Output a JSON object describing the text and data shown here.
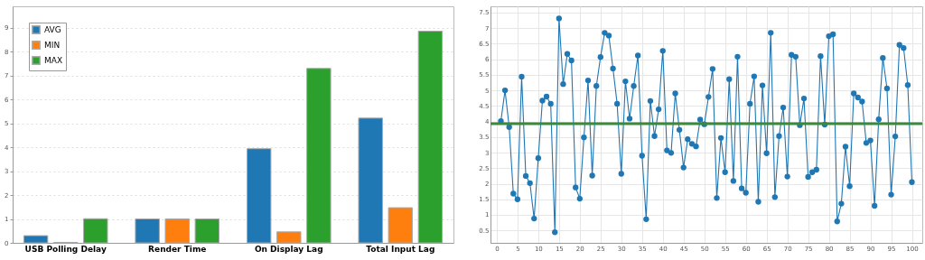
{
  "chart_data": [
    {
      "type": "bar",
      "categories": [
        "USB Polling Delay",
        "Render Time",
        "On Display Lag",
        "Total Input Lag"
      ],
      "series": [
        {
          "name": "AVG",
          "color": "#1f77b4",
          "values": [
            0.3,
            1.0,
            3.94,
            5.22
          ]
        },
        {
          "name": "MIN",
          "color": "#ff7f0e",
          "values": [
            0.02,
            1.0,
            0.46,
            1.47
          ]
        },
        {
          "name": "MAX",
          "color": "#2ca02c",
          "values": [
            1.01,
            1.0,
            7.3,
            8.86
          ]
        }
      ],
      "ylim": [
        0,
        9.9
      ],
      "yticks": [
        0,
        1,
        2,
        3,
        4,
        5,
        6,
        7,
        8,
        9
      ],
      "grid": "y",
      "legend": "top left"
    },
    {
      "type": "line",
      "x": [
        1,
        2,
        3,
        4,
        5,
        6,
        7,
        8,
        9,
        10,
        11,
        12,
        13,
        14,
        15,
        16,
        17,
        18,
        19,
        20,
        21,
        22,
        23,
        24,
        25,
        26,
        27,
        28,
        29,
        30,
        31,
        32,
        33,
        34,
        35,
        36,
        37,
        38,
        39,
        40,
        41,
        42,
        43,
        44,
        45,
        46,
        47,
        48,
        49,
        50,
        51,
        52,
        53,
        54,
        55,
        56,
        57,
        58,
        59,
        60,
        61,
        62,
        63,
        64,
        65,
        66,
        67,
        68,
        69,
        70,
        71,
        72,
        73,
        74,
        75,
        76,
        77,
        78,
        79,
        80,
        81,
        82,
        83,
        84,
        85,
        86,
        87,
        88,
        89,
        90,
        91,
        92,
        93,
        94,
        95,
        96,
        97,
        98,
        99,
        100
      ],
      "series": [
        {
          "color": "#1f77b4",
          "values": [
            4.01,
            5.0,
            3.82,
            1.68,
            1.5,
            5.44,
            2.25,
            2.02,
            0.88,
            2.82,
            4.67,
            4.8,
            4.57,
            0.44,
            7.31,
            5.2,
            6.17,
            5.96,
            1.88,
            1.52,
            3.49,
            5.32,
            2.26,
            5.14,
            6.07,
            6.85,
            6.76,
            5.7,
            4.57,
            2.32,
            5.29,
            4.09,
            5.14,
            6.12,
            2.9,
            0.86,
            4.66,
            3.53,
            4.39,
            6.27,
            3.07,
            2.99,
            4.9,
            3.73,
            2.52,
            3.43,
            3.28,
            3.2,
            4.06,
            3.91,
            4.79,
            5.69,
            1.54,
            3.47,
            2.37,
            5.36,
            2.09,
            6.08,
            1.85,
            1.71,
            4.57,
            5.45,
            1.42,
            5.16,
            2.98,
            6.85,
            1.57,
            3.53,
            4.45,
            2.23,
            6.14,
            6.08,
            3.88,
            4.74,
            2.22,
            2.37,
            2.45,
            6.1,
            3.9,
            6.74,
            6.8,
            0.79,
            1.36,
            3.19,
            1.92,
            4.9,
            4.77,
            4.64,
            3.31,
            3.39,
            1.29,
            4.07,
            6.04,
            5.06,
            1.65,
            3.52,
            6.46,
            6.36,
            5.17,
            2.05
          ]
        }
      ],
      "ref_lines": [
        {
          "axis": "y",
          "value": 3.93,
          "color": "#3a8a3a"
        }
      ],
      "xlim": [
        -1.5,
        102.5
      ],
      "xticks": [
        0,
        5,
        10,
        15,
        20,
        25,
        30,
        35,
        40,
        45,
        50,
        55,
        60,
        65,
        70,
        75,
        80,
        85,
        90,
        95,
        100
      ],
      "ylim": [
        0.1,
        7.7
      ],
      "yticks": [
        0.5,
        1,
        1.5,
        2,
        2.5,
        3,
        3.5,
        4,
        4.5,
        5,
        5.5,
        6,
        6.5,
        7,
        7.5
      ],
      "grid": true,
      "marker": "circle"
    }
  ]
}
